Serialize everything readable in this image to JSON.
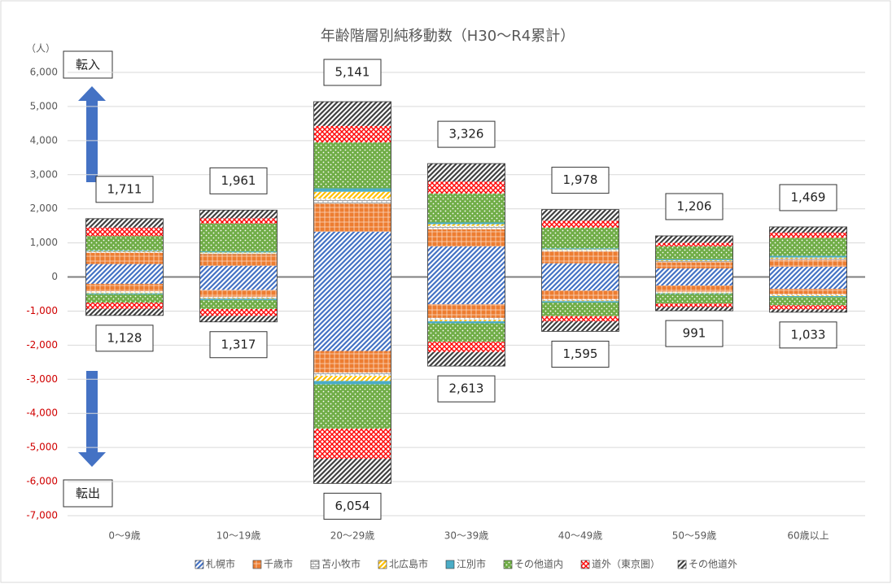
{
  "chart_data": {
    "type": "bar",
    "stacked": true,
    "title": "年齢階層別純移動数（H30～R4累計）",
    "y_label": "（人）",
    "annotations": [
      "転入",
      "転出"
    ],
    "categories": [
      "0～9歳",
      "10～19歳",
      "20～29歳",
      "30～39歳",
      "40～49歳",
      "50～59歳",
      "60歳以上"
    ],
    "series": [
      {
        "name": "札幌市",
        "color": "#4472c4",
        "pattern": "diagonal",
        "values": [
          380,
          330,
          1330,
          900,
          400,
          250,
          300
        ],
        "out_values": [
          -200,
          -380,
          -2170,
          -800,
          -400,
          -250,
          -350
        ]
      },
      {
        "name": "千歳市",
        "color": "#ed7d31",
        "pattern": "grid",
        "values": [
          330,
          340,
          820,
          500,
          350,
          180,
          200
        ],
        "out_values": [
          -220,
          -200,
          -630,
          -400,
          -250,
          -180,
          -150
        ]
      },
      {
        "name": "苫小牧市",
        "color": "#a5a5a5",
        "pattern": "brick",
        "values": [
          30,
          30,
          150,
          100,
          40,
          40,
          40
        ],
        "out_values": [
          -40,
          -40,
          -100,
          -60,
          -40,
          -30,
          -40
        ]
      },
      {
        "name": "北広島市",
        "color": "#ffc000",
        "pattern": "diagonal",
        "values": [
          20,
          20,
          200,
          50,
          20,
          20,
          30
        ],
        "out_values": [
          -20,
          -20,
          -150,
          -40,
          -20,
          -20,
          -20
        ]
      },
      {
        "name": "江別市",
        "color": "#4bacc6",
        "pattern": "solid",
        "values": [
          20,
          30,
          100,
          50,
          30,
          30,
          50
        ],
        "out_values": [
          -30,
          -40,
          -100,
          -60,
          -40,
          -20,
          -30
        ]
      },
      {
        "name": "その他道内",
        "color": "#70ad47",
        "pattern": "dots",
        "values": [
          420,
          820,
          1350,
          850,
          610,
          380,
          530
        ],
        "out_values": [
          -240,
          -260,
          -1300,
          -540,
          -400,
          -280,
          -240
        ]
      },
      {
        "name": "道外（東京圏）",
        "color": "#ff0000",
        "pattern": "cross",
        "values": [
          250,
          150,
          480,
          350,
          200,
          100,
          150
        ],
        "out_values": [
          -180,
          -200,
          -880,
          -300,
          -150,
          -100,
          -120
        ]
      },
      {
        "name": "その他道外",
        "color": "#404040",
        "pattern": "diagonal",
        "values": [
          261,
          241,
          711,
          526,
          328,
          206,
          169
        ],
        "out_values": [
          -198,
          -177,
          -724,
          -413,
          -295,
          -111,
          -83
        ]
      }
    ],
    "in_totals": {
      "values": [
        1711,
        1961,
        5141,
        3326,
        1978,
        1206,
        1469
      ],
      "value_labels": [
        "1,711",
        "1,961",
        "5,141",
        "3,326",
        "1,978",
        "1,206",
        "1,469"
      ]
    },
    "out_totals": {
      "values": [
        1128,
        1317,
        6054,
        2613,
        1595,
        991,
        1033
      ],
      "value_labels": [
        "1,128",
        "1,317",
        "6,054",
        "2,613",
        "1,595",
        "991",
        "1,033"
      ]
    },
    "ylim": [
      -7000,
      6000
    ],
    "yticks": [
      {
        "value": -7000,
        "label": "-7,000"
      },
      {
        "value": -6000,
        "label": "-6,000"
      },
      {
        "value": -5000,
        "label": "-5,000"
      },
      {
        "value": -4000,
        "label": "-4,000"
      },
      {
        "value": -3000,
        "label": "-3,000"
      },
      {
        "value": -2000,
        "label": "-2,000"
      },
      {
        "value": -1000,
        "label": "-1,000"
      },
      0,
      {
        "value": 1000,
        "label": "1,000"
      },
      {
        "value": 2000,
        "label": "2,000"
      },
      {
        "value": 3000,
        "label": "3,000"
      },
      {
        "value": 4000,
        "label": "4,000"
      },
      {
        "value": 5000,
        "label": "5,000"
      },
      {
        "value": 6000,
        "label": "6,000"
      }
    ],
    "grid": true,
    "legend": "bottom"
  }
}
